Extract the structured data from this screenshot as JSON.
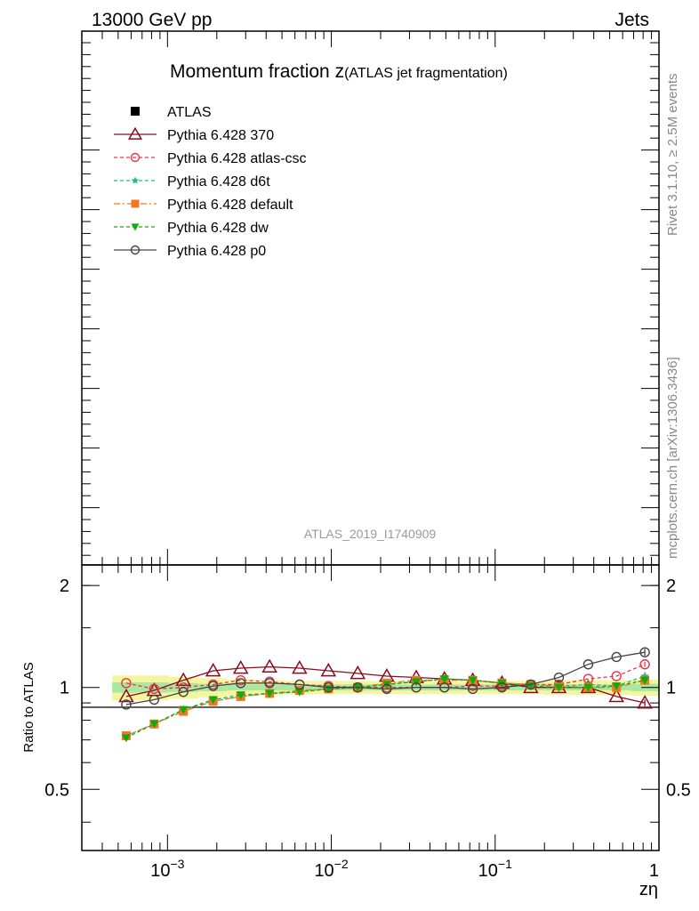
{
  "header": {
    "energy_label": "13000 GeV pp",
    "category_label": "Jets"
  },
  "side_labels": {
    "rivet": "Rivet 3.1.10, ≥ 2.5M events",
    "mcplots": "mcplots.cern.ch [arXiv:1306.3436]"
  },
  "chart_data": [
    {
      "type": "line",
      "title_main": "Momentum fraction z",
      "title_sub": "(ATLAS jet fragmentation)",
      "watermark": "ATLAS_2019_I1740909",
      "x_scale": "log",
      "legend_position": "top-left",
      "legend": [
        {
          "name": "ATLAS",
          "color": "#000000",
          "marker": "square-filled",
          "dash": "none"
        },
        {
          "name": "Pythia 6.428 370",
          "color": "#8b0a1e",
          "marker": "triangle-open",
          "dash": "solid"
        },
        {
          "name": "Pythia 6.428 atlas-csc",
          "color": "#ee3344",
          "marker": "circle-open",
          "dash": "dashed"
        },
        {
          "name": "Pythia 6.428 d6t",
          "color": "#22bb88",
          "marker": "star",
          "dash": "dashed"
        },
        {
          "name": "Pythia 6.428 default",
          "color": "#f07820",
          "marker": "square-filled",
          "dash": "dashdot"
        },
        {
          "name": "Pythia 6.428 dw",
          "color": "#11aa11",
          "marker": "triangle-down-filled",
          "dash": "dashed"
        },
        {
          "name": "Pythia 6.428 p0",
          "color": "#444444",
          "marker": "circle-open",
          "dash": "solid"
        }
      ]
    },
    {
      "type": "line",
      "ylabel": "Ratio to ATLAS",
      "xlabel": "zη",
      "x_scale": "log",
      "xlim": [
        0.0003,
        1
      ],
      "ylim": [
        0.33,
        2.3
      ],
      "y_scale": "log",
      "y_ticks": [
        0.5,
        1,
        2
      ],
      "y_tick_labels": [
        "0.5",
        "1",
        "2"
      ],
      "x_tick_labels": [
        {
          "base": "10",
          "exp": "−3",
          "value": 0.001
        },
        {
          "base": "10",
          "exp": "−2",
          "value": 0.01
        },
        {
          "base": "10",
          "exp": "−1",
          "value": 0.1
        },
        {
          "base": "1",
          "exp": "",
          "value": 1
        }
      ],
      "x": [
        0.00056,
        0.00083,
        0.00125,
        0.0019,
        0.0028,
        0.0042,
        0.0064,
        0.0096,
        0.0145,
        0.0218,
        0.033,
        0.049,
        0.073,
        0.11,
        0.165,
        0.245,
        0.37,
        0.55,
        0.82
      ],
      "band_outer_halfwidth": [
        0.085,
        0.085,
        0.075,
        0.065,
        0.055,
        0.05,
        0.045,
        0.045,
        0.045,
        0.045,
        0.045,
        0.045,
        0.045,
        0.045,
        0.045,
        0.05,
        0.05,
        0.05,
        0.055
      ],
      "band_inner_halfwidth": [
        0.035,
        0.035,
        0.03,
        0.025,
        0.02,
        0.02,
        0.02,
        0.02,
        0.02,
        0.02,
        0.02,
        0.02,
        0.02,
        0.02,
        0.02,
        0.02,
        0.02,
        0.02,
        0.025
      ],
      "series": [
        {
          "name": "Pythia 6.428 370",
          "values": [
            0.94,
            0.98,
            1.05,
            1.12,
            1.14,
            1.15,
            1.14,
            1.12,
            1.1,
            1.08,
            1.07,
            1.06,
            1.05,
            1.03,
            1.0,
            1.0,
            1.0,
            0.94,
            0.9
          ],
          "last_error": 0.02
        },
        {
          "name": "Pythia 6.428 atlas-csc",
          "values": [
            1.03,
            0.99,
            1.0,
            1.02,
            1.05,
            1.04,
            1.02,
            1.01,
            1.0,
            1.0,
            1.0,
            1.0,
            1.01,
            1.01,
            1.02,
            1.02,
            1.06,
            1.08,
            1.17
          ],
          "last_error": 0.02
        },
        {
          "name": "Pythia 6.428 d6t",
          "values": [
            0.72,
            0.78,
            0.86,
            0.91,
            0.94,
            0.96,
            0.97,
            0.99,
            1.0,
            1.02,
            1.04,
            1.06,
            1.05,
            1.03,
            1.02,
            1.01,
            1.02,
            1.01,
            1.08
          ],
          "last_error": 0.03
        },
        {
          "name": "Pythia 6.428 default",
          "values": [
            0.72,
            0.78,
            0.85,
            0.91,
            0.94,
            0.96,
            0.98,
            0.99,
            1.0,
            1.03,
            1.05,
            1.05,
            1.05,
            1.03,
            1.02,
            1.01,
            1.0,
            1.0,
            1.05
          ],
          "last_error": 0.03
        },
        {
          "name": "Pythia 6.428 dw",
          "values": [
            0.71,
            0.78,
            0.86,
            0.92,
            0.95,
            0.96,
            0.97,
            0.99,
            1.0,
            1.02,
            1.04,
            1.06,
            1.05,
            1.03,
            1.01,
            1.0,
            1.0,
            1.01,
            1.05
          ],
          "last_error": 0.03
        },
        {
          "name": "Pythia 6.428 p0",
          "values": [
            0.89,
            0.92,
            0.97,
            1.01,
            1.03,
            1.03,
            1.02,
            1.0,
            1.0,
            0.99,
            1.0,
            1.0,
            0.99,
            1.0,
            1.02,
            1.07,
            1.17,
            1.23,
            1.27
          ],
          "last_error": 0.03
        }
      ]
    }
  ]
}
